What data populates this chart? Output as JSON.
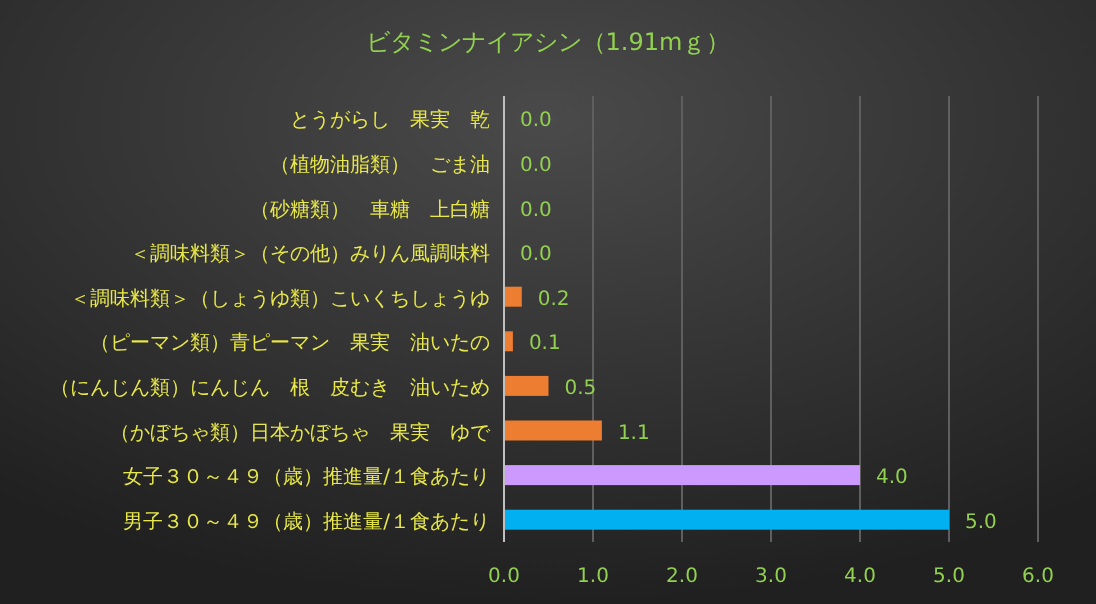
{
  "chart_data": {
    "type": "bar",
    "orientation": "horizontal",
    "title": "ビタミンナイアシン（1.91mｇ）",
    "categories": [
      "とうがらし　果実　乾",
      "（植物油脂類）　ごま油",
      "（砂糖類）　車糖　上白糖",
      "＜調味料類＞（その他）みりん風調味料",
      "＜調味料類＞（しょうゆ類）こいくちしょうゆ",
      "（ピーマン類）青ピーマン　果実　油いたの",
      "（にんじん類）にんじん　根　皮むき　油いため",
      "（かぼちゃ類）日本かぼちゃ　果実　ゆで",
      "女子３０～４９（歳）推進量/１食あたり",
      "男子３０～４９（歳）推進量/１食あたり"
    ],
    "values": [
      0.0,
      0.0,
      0.0,
      0.0,
      0.2,
      0.1,
      0.5,
      1.1,
      4.0,
      5.0
    ],
    "value_labels": [
      "0.0",
      "0.0",
      "0.0",
      "0.0",
      "0.2",
      "0.1",
      "0.5",
      "1.1",
      "4.0",
      "5.0"
    ],
    "colors": [
      "#ed7d31",
      "#ed7d31",
      "#ed7d31",
      "#ed7d31",
      "#ed7d31",
      "#ed7d31",
      "#ed7d31",
      "#ed7d31",
      "#cc99ff",
      "#00b0f0"
    ],
    "xlim": [
      0,
      6
    ],
    "xticks": [
      {
        "value": 0,
        "label": "0.0"
      },
      {
        "value": 1,
        "label": "1.0"
      },
      {
        "value": 2,
        "label": "2.0"
      },
      {
        "value": 3,
        "label": "3.0"
      },
      {
        "value": 4,
        "label": "4.0"
      },
      {
        "value": 5,
        "label": "5.0"
      },
      {
        "value": 6,
        "label": "6.0"
      }
    ],
    "grid": "x"
  }
}
